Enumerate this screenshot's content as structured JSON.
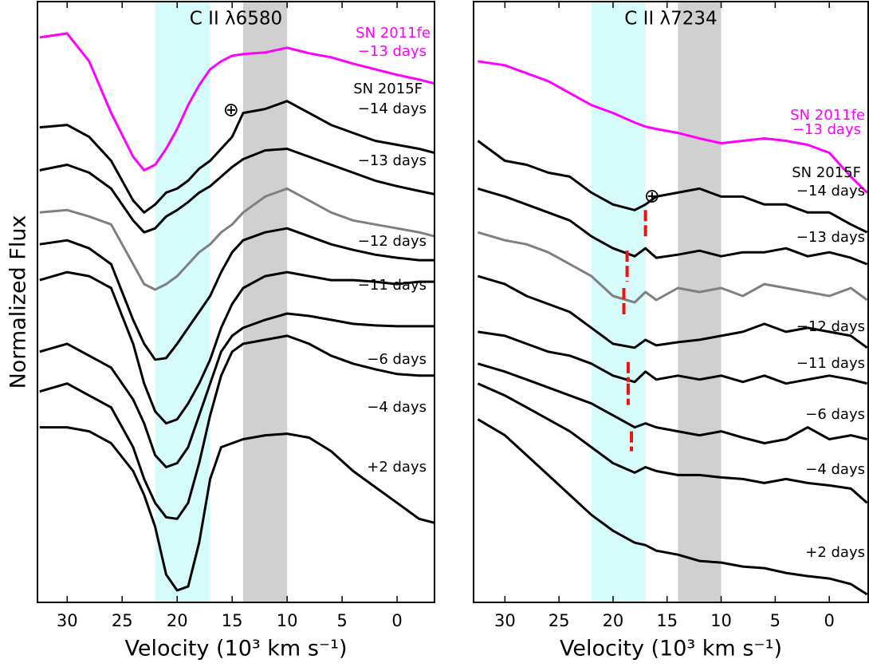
{
  "chart_data": [
    {
      "type": "line",
      "title": "C II λ6580",
      "ylabel": "Normalized Flux",
      "xlabel": "Velocity (10³  km s⁻¹)",
      "xlim": [
        32.7,
        -3.4
      ],
      "ylim": [
        0,
        7.55
      ],
      "xticks": [
        30,
        25,
        20,
        15,
        10,
        5,
        0
      ],
      "bands": [
        {
          "range": [
            22,
            17
          ],
          "color": "#d6fbfb"
        },
        {
          "range": [
            14,
            10
          ],
          "color": "#d0d0d0"
        }
      ],
      "sn_label": "SN 2015F",
      "annotations": [
        {
          "text": "⊕",
          "x": 15.1,
          "y": 6.18
        }
      ],
      "x": [
        32.5,
        30,
        28,
        26,
        24,
        23,
        22,
        21,
        20,
        19,
        18,
        17,
        16,
        15,
        14,
        12,
        10,
        8,
        6,
        4,
        2,
        0,
        -2,
        -3.4
      ],
      "series": [
        {
          "name": "−13 days",
          "object": "SN 2011fe",
          "color": "#ff00ff",
          "values": [
            7.1,
            7.15,
            6.8,
            6.15,
            5.6,
            5.43,
            5.5,
            5.7,
            5.95,
            6.25,
            6.5,
            6.7,
            6.8,
            6.87,
            6.89,
            6.91,
            6.97,
            6.9,
            6.85,
            6.77,
            6.7,
            6.63,
            6.57,
            6.52
          ]
        },
        {
          "name": "−14 days",
          "color": "#000000",
          "values": [
            5.97,
            6.0,
            5.85,
            5.55,
            5.05,
            4.9,
            5.0,
            5.15,
            5.2,
            5.3,
            5.45,
            5.55,
            5.7,
            5.85,
            6.15,
            6.2,
            6.3,
            6.15,
            6.0,
            5.9,
            5.8,
            5.75,
            5.7,
            5.65
          ]
        },
        {
          "name": "−13 days",
          "color": "#000000",
          "values": [
            5.43,
            5.5,
            5.4,
            5.2,
            4.8,
            4.65,
            4.7,
            4.85,
            4.93,
            5.03,
            5.15,
            5.23,
            5.35,
            5.47,
            5.57,
            5.68,
            5.7,
            5.6,
            5.5,
            5.4,
            5.3,
            5.23,
            5.17,
            5.13
          ]
        },
        {
          "name": null,
          "color": "#808080",
          "values": [
            4.9,
            4.93,
            4.85,
            4.75,
            4.25,
            4.0,
            3.93,
            4.0,
            4.1,
            4.25,
            4.4,
            4.5,
            4.65,
            4.75,
            4.9,
            5.1,
            5.2,
            5.05,
            4.9,
            4.8,
            4.75,
            4.7,
            4.65,
            4.6
          ]
        },
        {
          "name": "−12 days",
          "color": "#000000",
          "values": [
            4.5,
            4.55,
            4.45,
            4.25,
            3.55,
            3.25,
            3.05,
            3.07,
            3.25,
            3.45,
            3.65,
            3.85,
            4.15,
            4.4,
            4.55,
            4.65,
            4.7,
            4.6,
            4.5,
            4.43,
            4.37,
            4.33,
            4.3,
            4.3
          ]
        },
        {
          "name": "−11 days",
          "color": "#000000",
          "values": [
            4.05,
            4.15,
            4.1,
            3.95,
            3.25,
            2.75,
            2.4,
            2.25,
            2.3,
            2.5,
            2.75,
            3.05,
            3.45,
            3.75,
            3.95,
            4.1,
            4.15,
            4.1,
            4.05,
            4.05,
            4.03,
            4.0,
            4.03,
            4.03
          ]
        },
        {
          "name": "−6 days",
          "color": "#000000",
          "values": [
            3.15,
            3.25,
            3.1,
            2.95,
            2.55,
            2.25,
            1.85,
            1.7,
            1.75,
            1.95,
            2.35,
            2.75,
            3.15,
            3.35,
            3.45,
            3.55,
            3.63,
            3.6,
            3.55,
            3.5,
            3.48,
            3.47,
            3.47,
            3.47
          ]
        },
        {
          "name": "−4 days",
          "color": "#000000",
          "values": [
            2.65,
            2.75,
            2.6,
            2.45,
            1.95,
            1.55,
            1.25,
            1.07,
            1.05,
            1.25,
            1.75,
            2.35,
            2.85,
            3.15,
            3.25,
            3.3,
            3.35,
            3.25,
            3.1,
            3.0,
            2.93,
            2.87,
            2.85,
            2.85
          ]
        },
        {
          "name": "+2 days",
          "color": "#000000",
          "values": [
            2.2,
            2.2,
            2.15,
            2.0,
            1.65,
            1.35,
            0.95,
            0.35,
            0.15,
            0.2,
            0.75,
            1.55,
            1.95,
            2.0,
            2.05,
            2.1,
            2.12,
            2.07,
            1.9,
            1.65,
            1.45,
            1.25,
            1.05,
            1.0
          ]
        }
      ]
    },
    {
      "type": "line",
      "title": "C II λ7234",
      "xlabel": "Velocity (10³  km s⁻¹)",
      "xlim": [
        32.9,
        -3.6
      ],
      "ylim": [
        0,
        7.55
      ],
      "xticks": [
        30,
        25,
        20,
        15,
        10,
        5,
        0
      ],
      "bands": [
        {
          "range": [
            22,
            17
          ],
          "color": "#d6fbfb"
        },
        {
          "range": [
            14,
            10
          ],
          "color": "#d0d0d0"
        }
      ],
      "sn_label": "SN 2015F",
      "annotations": [
        {
          "text": "⊕",
          "x": 16.4,
          "y": 5.1
        }
      ],
      "marker_color": "#ee1111",
      "markers": [
        {
          "x": 17.0,
          "y": [
            4.93,
            4.57
          ]
        },
        {
          "x": 18.7,
          "y": [
            4.42,
            4.03
          ]
        },
        {
          "x": 19.0,
          "y": [
            3.95,
            3.6
          ]
        },
        {
          "x": 18.6,
          "y": [
            3.02,
            2.77
          ]
        },
        {
          "x": 18.6,
          "y": [
            2.75,
            2.48
          ]
        },
        {
          "x": 18.3,
          "y": [
            2.15,
            1.9
          ]
        }
      ],
      "x": [
        32.5,
        30,
        28,
        26,
        24,
        22,
        20,
        18,
        17,
        16,
        14,
        12,
        10,
        8,
        6,
        4,
        2,
        0,
        -2,
        -3.5
      ],
      "series": [
        {
          "name": "−13 days",
          "object": "SN 2011fe",
          "color": "#ff00ff",
          "values": [
            6.8,
            6.75,
            6.65,
            6.55,
            6.4,
            6.25,
            6.15,
            6.03,
            5.98,
            5.95,
            5.9,
            5.83,
            5.77,
            5.8,
            5.83,
            5.8,
            5.75,
            5.65,
            5.35,
            5.15
          ]
        },
        {
          "name": "−14 days",
          "color": "#000000",
          "values": [
            5.8,
            5.55,
            5.5,
            5.4,
            5.35,
            5.15,
            5.0,
            4.93,
            5.0,
            5.1,
            5.15,
            5.2,
            5.1,
            5.1,
            5.0,
            5.0,
            4.9,
            4.9,
            4.75,
            4.65
          ]
        },
        {
          "name": "−13 days",
          "color": "#000000",
          "values": [
            5.2,
            5.1,
            5.0,
            4.9,
            4.8,
            4.6,
            4.45,
            4.35,
            4.45,
            4.33,
            4.37,
            4.42,
            4.35,
            4.4,
            4.4,
            4.45,
            4.35,
            4.4,
            4.33,
            4.25
          ]
        },
        {
          "name": null,
          "color": "#808080",
          "values": [
            4.65,
            4.55,
            4.5,
            4.4,
            4.25,
            4.1,
            3.85,
            3.77,
            3.9,
            3.8,
            3.95,
            3.9,
            3.95,
            3.85,
            4.0,
            3.95,
            3.9,
            3.85,
            3.95,
            3.8
          ]
        },
        {
          "name": "−12 days",
          "color": "#000000",
          "values": [
            4.1,
            4.0,
            3.85,
            3.75,
            3.65,
            3.45,
            3.25,
            3.2,
            3.3,
            3.23,
            3.27,
            3.3,
            3.35,
            3.4,
            3.5,
            3.4,
            3.45,
            3.4,
            3.35,
            3.2
          ]
        },
        {
          "name": "−11 days",
          "color": "#000000",
          "values": [
            3.4,
            3.35,
            3.25,
            3.15,
            3.1,
            3.0,
            2.85,
            2.77,
            2.9,
            2.8,
            2.85,
            2.8,
            2.85,
            2.77,
            2.85,
            2.75,
            2.8,
            2.85,
            2.8,
            2.75
          ]
        },
        {
          "name": "−6 days",
          "color": "#000000",
          "values": [
            3.0,
            2.9,
            2.8,
            2.7,
            2.6,
            2.5,
            2.35,
            2.2,
            2.25,
            2.2,
            2.15,
            2.1,
            2.15,
            2.07,
            2.0,
            2.05,
            2.2,
            2.05,
            2.1,
            2.05
          ]
        },
        {
          "name": "−4 days",
          "color": "#000000",
          "values": [
            2.75,
            2.6,
            2.45,
            2.3,
            2.15,
            1.95,
            1.75,
            1.63,
            1.7,
            1.65,
            1.6,
            1.6,
            1.57,
            1.55,
            1.5,
            1.55,
            1.5,
            1.47,
            1.43,
            1.25
          ]
        },
        {
          "name": "+2 days",
          "color": "#000000",
          "values": [
            2.3,
            2.1,
            1.85,
            1.6,
            1.35,
            1.1,
            0.9,
            0.75,
            0.72,
            0.65,
            0.6,
            0.52,
            0.5,
            0.45,
            0.43,
            0.37,
            0.33,
            0.3,
            0.23,
            0.1
          ]
        }
      ]
    }
  ]
}
